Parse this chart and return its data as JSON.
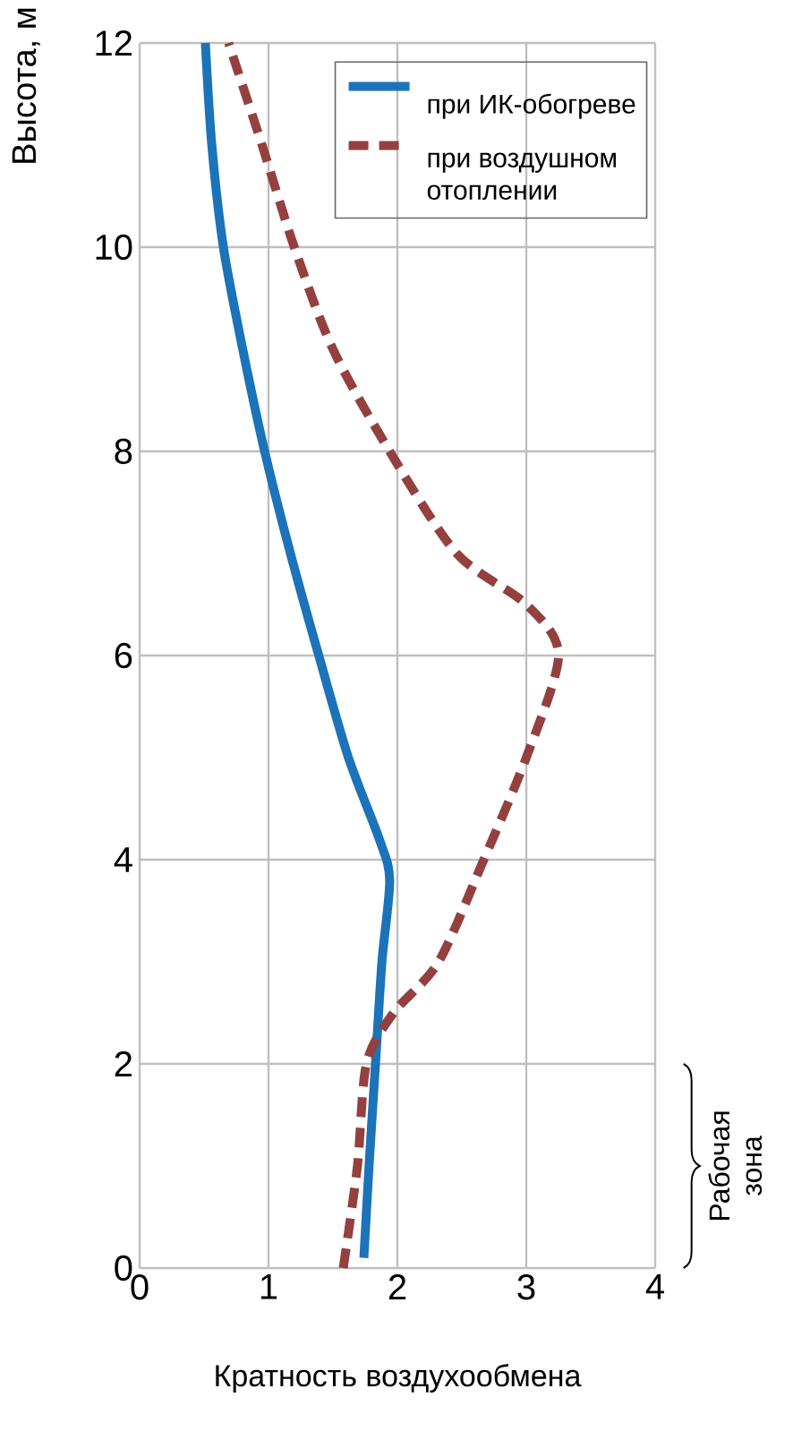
{
  "chart_data": {
    "type": "line",
    "xlabel": "Кратность воздухообмена",
    "ylabel": "Высота, м",
    "xlim": [
      0,
      4
    ],
    "ylim": [
      0,
      12
    ],
    "xticks": [
      0,
      1,
      2,
      3,
      4
    ],
    "yticks": [
      0,
      2,
      4,
      6,
      8,
      10,
      12
    ],
    "grid": true,
    "legend": "top right",
    "series": [
      {
        "name": "при ИК-обогреве",
        "color": "#1b73ba",
        "line_style": "solid",
        "x": [
          1.74,
          1.78,
          1.83,
          1.88,
          1.94,
          1.86,
          1.62,
          1.39,
          1.17,
          0.97,
          0.8,
          0.65,
          0.56,
          0.51
        ],
        "values": [
          0.1,
          1,
          2,
          3,
          3.8,
          4.2,
          5,
          6,
          7,
          8,
          9,
          10,
          11,
          12
        ]
      },
      {
        "name": "при воздушном отоплении",
        "color": "#93403f",
        "line_style": "dashed",
        "x": [
          1.58,
          1.69,
          1.76,
          1.97,
          2.32,
          2.67,
          3.0,
          3.25,
          3.0,
          2.46,
          1.94,
          1.5,
          1.2,
          0.95,
          0.69
        ],
        "values": [
          0,
          1,
          2,
          2.5,
          3,
          4,
          5,
          6,
          6.5,
          7,
          8,
          9,
          10,
          11,
          12
        ]
      }
    ],
    "annotations": [
      "Рабочая зона"
    ]
  }
}
